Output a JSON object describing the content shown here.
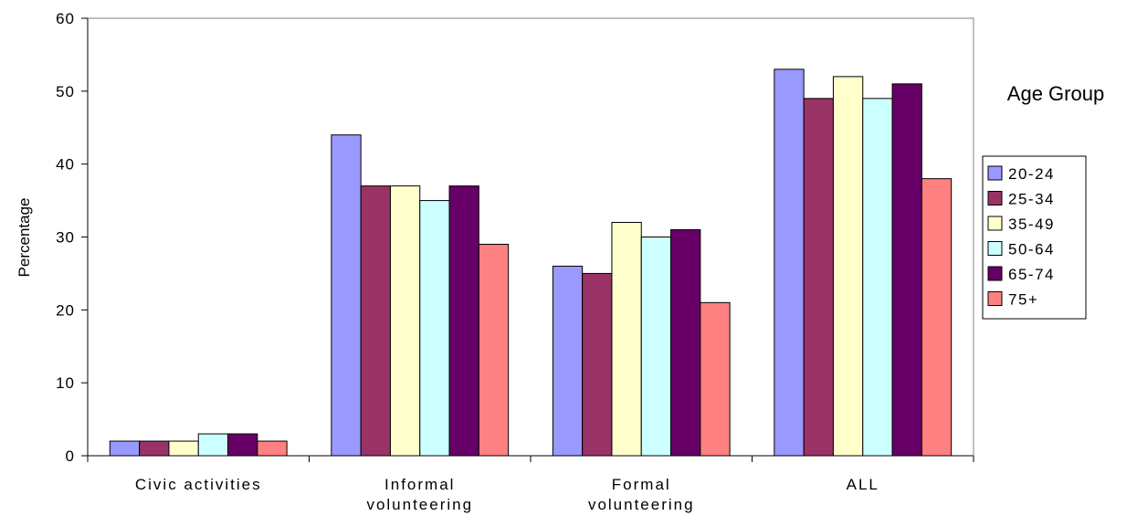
{
  "chart_data": {
    "type": "bar",
    "title": "",
    "xlabel": "",
    "ylabel": "Percentage",
    "ylim": [
      0,
      60
    ],
    "yticks": [
      0,
      10,
      20,
      30,
      40,
      50,
      60
    ],
    "categories": [
      [
        "Civic activities"
      ],
      [
        "Informal",
        "volunteering"
      ],
      [
        "Formal",
        "volunteering"
      ],
      [
        "ALL"
      ]
    ],
    "legend": {
      "title": "Age Group",
      "placement": "right"
    },
    "grid": false,
    "series": [
      {
        "name": "20-24",
        "color": "#9999ff",
        "values": [
          2,
          44,
          26,
          53
        ]
      },
      {
        "name": "25-34",
        "color": "#993366",
        "values": [
          2,
          37,
          25,
          49
        ]
      },
      {
        "name": "35-49",
        "color": "#ffffcc",
        "values": [
          2,
          37,
          32,
          52
        ]
      },
      {
        "name": "50-64",
        "color": "#ccffff",
        "values": [
          3,
          35,
          30,
          49
        ]
      },
      {
        "name": "65-74",
        "color": "#660066",
        "values": [
          3,
          37,
          31,
          51
        ]
      },
      {
        "name": "75+",
        "color": "#ff8080",
        "values": [
          2,
          29,
          21,
          38
        ]
      }
    ]
  }
}
